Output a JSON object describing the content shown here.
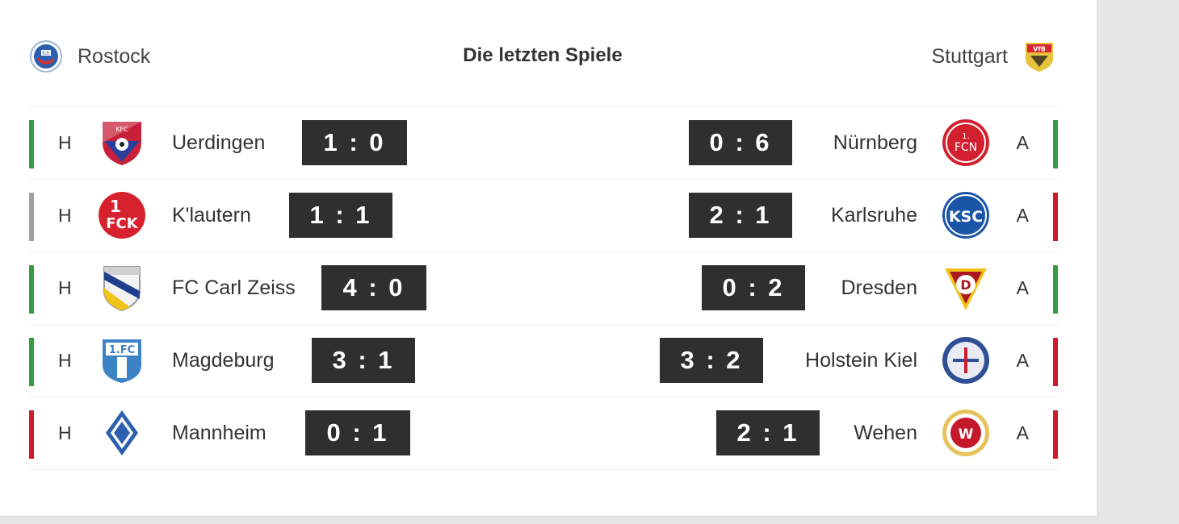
{
  "header": {
    "title": "Die letzten Spiele",
    "home_team": "Rostock",
    "away_team": "Stuttgart"
  },
  "colors": {
    "win": "#3a9a3f",
    "draw": "#a0a0a0",
    "loss": "#d0192c",
    "score_bg": "#2f2f2f"
  },
  "home_games": [
    {
      "venue": "H",
      "opponent": "Uerdingen",
      "score": "1 : 0",
      "result": "win",
      "crest": "uerdingen-crest-icon"
    },
    {
      "venue": "H",
      "opponent": "K'lautern",
      "score": "1 : 1",
      "result": "draw",
      "crest": "kaiserslautern-crest-icon"
    },
    {
      "venue": "H",
      "opponent": "FC Carl Zeiss",
      "score": "4 : 0",
      "result": "win",
      "crest": "carl-zeiss-crest-icon"
    },
    {
      "venue": "H",
      "opponent": "Magdeburg",
      "score": "3 : 1",
      "result": "win",
      "crest": "magdeburg-crest-icon"
    },
    {
      "venue": "H",
      "opponent": "Mannheim",
      "score": "0 : 1",
      "result": "loss",
      "crest": "mannheim-crest-icon"
    }
  ],
  "away_games": [
    {
      "venue": "A",
      "opponent": "Nürnberg",
      "score": "0 : 6",
      "result": "win",
      "crest": "nuernberg-crest-icon"
    },
    {
      "venue": "A",
      "opponent": "Karlsruhe",
      "score": "2 : 1",
      "result": "loss",
      "crest": "karlsruhe-crest-icon"
    },
    {
      "venue": "A",
      "opponent": "Dresden",
      "score": "0 : 2",
      "result": "win",
      "crest": "dresden-crest-icon"
    },
    {
      "venue": "A",
      "opponent": "Holstein Kiel",
      "score": "3 : 2",
      "result": "loss",
      "crest": "holstein-kiel-crest-icon"
    },
    {
      "venue": "A",
      "opponent": "Wehen",
      "score": "2 : 1",
      "result": "loss",
      "crest": "wehen-crest-icon"
    }
  ]
}
